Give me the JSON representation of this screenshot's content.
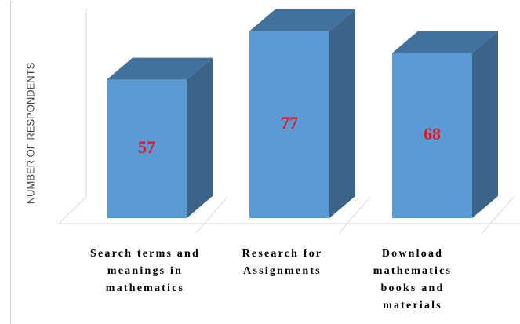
{
  "chart_data": {
    "type": "bar3d",
    "y_axis_label": "NUMBER OF RESPONDENTS",
    "categories": [
      "Search terms and meanings in mathematics",
      "Research for Assignments",
      "Download mathematics books and materials"
    ],
    "values": [
      57,
      77,
      68
    ],
    "color": "#5b9bd5",
    "value_label_color": "#e8141c",
    "ylim": [
      0,
      85
    ]
  }
}
